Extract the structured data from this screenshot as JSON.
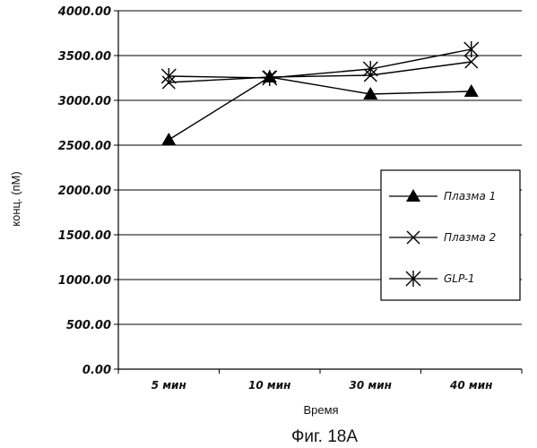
{
  "chart_data": {
    "type": "line",
    "categories": [
      "5 мин",
      "10 мин",
      "30 мин",
      "40 мин"
    ],
    "series": [
      {
        "name": "Плазма 1",
        "marker": "triangle",
        "values": [
          2560,
          3260,
          3070,
          3100
        ]
      },
      {
        "name": "Плазма 2",
        "marker": "x",
        "values": [
          3200,
          3260,
          3280,
          3430
        ]
      },
      {
        "name": "GLP-1",
        "marker": "asterisk",
        "values": [
          3270,
          3250,
          3350,
          3570
        ]
      }
    ],
    "ylim": [
      0,
      4000
    ],
    "yticks": [
      0,
      500,
      1000,
      1500,
      2000,
      2500,
      3000,
      3500,
      4000
    ],
    "ytick_labels": [
      "0.00",
      "500.00",
      "1000.00",
      "1500.00",
      "2000.00",
      "2500.00",
      "3000.00",
      "3500.00",
      "4000.00"
    ],
    "xlabel": "Время",
    "ylabel": "конц. (пМ)",
    "grid": "horizontal",
    "legend_position": "right",
    "line_color": "#000000"
  },
  "caption": "Фиг. 18А"
}
